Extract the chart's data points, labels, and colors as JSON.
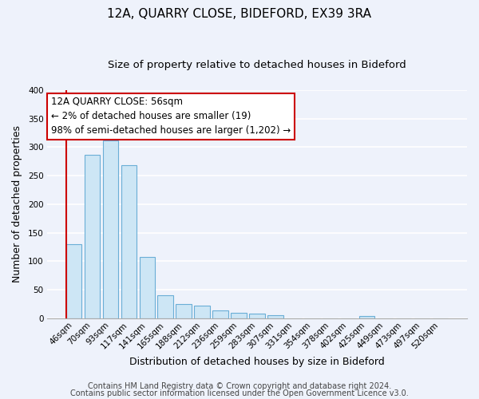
{
  "title": "12A, QUARRY CLOSE, BIDEFORD, EX39 3RA",
  "subtitle": "Size of property relative to detached houses in Bideford",
  "xlabel": "Distribution of detached houses by size in Bideford",
  "ylabel": "Number of detached properties",
  "bar_labels": [
    "46sqm",
    "70sqm",
    "93sqm",
    "117sqm",
    "141sqm",
    "165sqm",
    "188sqm",
    "212sqm",
    "236sqm",
    "259sqm",
    "283sqm",
    "307sqm",
    "331sqm",
    "354sqm",
    "378sqm",
    "402sqm",
    "425sqm",
    "449sqm",
    "473sqm",
    "497sqm",
    "520sqm"
  ],
  "bar_values": [
    130,
    287,
    311,
    268,
    107,
    41,
    25,
    22,
    14,
    10,
    9,
    5,
    0,
    0,
    0,
    0,
    4,
    0,
    0,
    0,
    0
  ],
  "bar_face_color": "#cde6f5",
  "bar_edge_color": "#6aaed6",
  "annotation_line1": "12A QUARRY CLOSE: 56sqm",
  "annotation_line2": "← 2% of detached houses are smaller (19)",
  "annotation_line3": "98% of semi-detached houses are larger (1,202) →",
  "annotation_box_facecolor": "#ffffff",
  "annotation_box_edgecolor": "#cc0000",
  "red_line_x": -0.425,
  "ylim": [
    0,
    400
  ],
  "yticks": [
    0,
    50,
    100,
    150,
    200,
    250,
    300,
    350,
    400
  ],
  "footer_line1": "Contains HM Land Registry data © Crown copyright and database right 2024.",
  "footer_line2": "Contains public sector information licensed under the Open Government Licence v3.0.",
  "background_color": "#eef2fb",
  "grid_color": "#ffffff",
  "title_fontsize": 11,
  "subtitle_fontsize": 9.5,
  "axis_label_fontsize": 9,
  "tick_fontsize": 7.5,
  "footer_fontsize": 7,
  "annotation_fontsize": 8.5
}
